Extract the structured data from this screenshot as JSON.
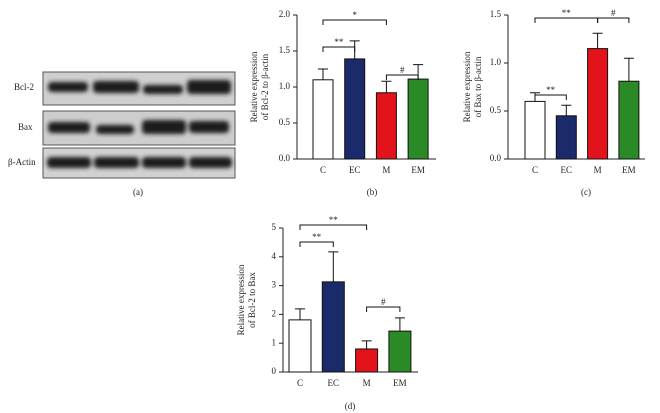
{
  "blot": {
    "labels": [
      "Bcl-2",
      "Bax",
      "β-Actin"
    ],
    "caption": "(a)"
  },
  "chart_data": [
    {
      "type": "bar",
      "caption": "(b)",
      "ylabel": [
        "Relative expression",
        "of Bcl-2 to β-actin"
      ],
      "categories": [
        "C",
        "EC",
        "M",
        "EM"
      ],
      "values": [
        1.1,
        1.39,
        0.92,
        1.11
      ],
      "errors": [
        0.15,
        0.25,
        0.16,
        0.2
      ],
      "colors": [
        "#ffffff",
        "#1b2a6b",
        "#e3131b",
        "#2a8a26"
      ],
      "ylim": [
        0,
        2
      ],
      "yticks": [
        {
          "value": 0,
          "label": "0.0"
        },
        {
          "value": 0.5,
          "label": "0.5"
        },
        {
          "value": 1,
          "label": "1.0"
        },
        {
          "value": 1.5,
          "label": "1.5"
        },
        {
          "value": 2,
          "label": "2.0"
        }
      ],
      "annotations": [
        {
          "text": "**",
          "between": [
            "C",
            "EC"
          ]
        },
        {
          "text": "*",
          "between": [
            "C",
            "M"
          ]
        },
        {
          "text": "#",
          "between": [
            "M",
            "EM"
          ]
        }
      ]
    },
    {
      "type": "bar",
      "caption": "(c)",
      "ylabel": [
        "Relative expression",
        "of Bax to β-actin"
      ],
      "categories": [
        "C",
        "EC",
        "M",
        "EM"
      ],
      "values": [
        0.6,
        0.45,
        1.15,
        0.81
      ],
      "errors": [
        0.09,
        0.11,
        0.16,
        0.24
      ],
      "colors": [
        "#ffffff",
        "#1b2a6b",
        "#e3131b",
        "#2a8a26"
      ],
      "ylim": [
        0,
        1.5
      ],
      "yticks": [
        {
          "value": 0,
          "label": "0.0"
        },
        {
          "value": 0.5,
          "label": "0.5"
        },
        {
          "value": 1,
          "label": "1.0"
        },
        {
          "value": 1.5,
          "label": "1.5"
        }
      ],
      "annotations": [
        {
          "text": "**",
          "between": [
            "C",
            "EC"
          ]
        },
        {
          "text": "**",
          "between": [
            "C",
            "M"
          ]
        },
        {
          "text": "#",
          "between": [
            "M",
            "EM"
          ]
        }
      ]
    },
    {
      "type": "bar",
      "caption": "(d)",
      "ylabel": [
        "Relative expression",
        "of Bcl-2 to Bax"
      ],
      "categories": [
        "C",
        "EC",
        "M",
        "EM"
      ],
      "values": [
        1.81,
        3.13,
        0.8,
        1.42
      ],
      "errors": [
        0.38,
        1.04,
        0.28,
        0.46
      ],
      "colors": [
        "#ffffff",
        "#1b2a6b",
        "#e3131b",
        "#2a8a26"
      ],
      "ylim": [
        0,
        5
      ],
      "yticks": [
        0,
        1,
        2,
        3,
        4,
        5
      ],
      "annotations": [
        {
          "text": "**",
          "between": [
            "C",
            "EC"
          ]
        },
        {
          "text": "**",
          "between": [
            "C",
            "M"
          ]
        },
        {
          "text": "#",
          "between": [
            "M",
            "EM"
          ]
        }
      ]
    }
  ]
}
